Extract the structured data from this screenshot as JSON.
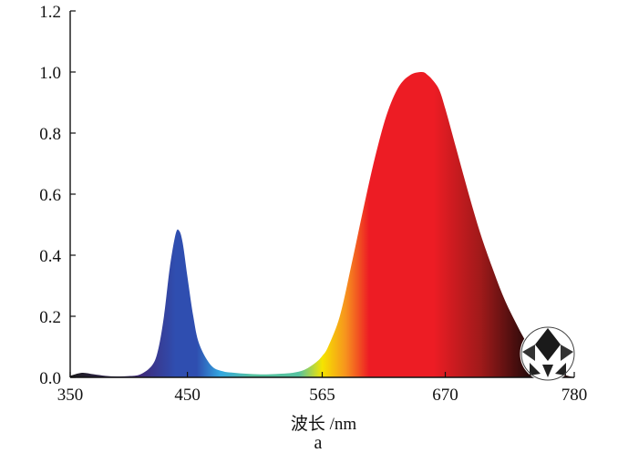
{
  "chart_data": {
    "type": "area",
    "title": "",
    "xlabel": "波长 /nm",
    "ylabel": "",
    "panel_label": "a",
    "xlim": [
      350,
      780
    ],
    "ylim": [
      0,
      1.2
    ],
    "x_ticks": [
      350,
      450,
      565,
      670,
      780
    ],
    "x_tick_labels": [
      "350",
      "450",
      "565",
      "670",
      "780"
    ],
    "y_ticks": [
      0.0,
      0.2,
      0.4,
      0.6,
      0.8,
      1.0,
      1.2
    ],
    "y_tick_labels": [
      "0.0",
      "0.2",
      "0.4",
      "0.6",
      "0.8",
      "1.0",
      "1.2"
    ],
    "grid": false,
    "legend": "none",
    "series": [
      {
        "x": [
          350,
          360,
          370,
          380,
          390,
          400,
          410,
          420,
          425,
          430,
          435,
          440,
          443,
          446,
          450,
          455,
          460,
          470,
          480,
          490,
          500,
          510,
          520,
          530,
          540,
          550,
          560,
          565,
          570,
          580,
          590,
          600,
          610,
          620,
          630,
          640,
          650,
          655,
          660,
          665,
          670,
          680,
          690,
          700,
          710,
          720,
          730,
          740,
          750,
          760,
          770,
          780
        ],
        "y": [
          0.005,
          0.015,
          0.01,
          0.005,
          0.003,
          0.004,
          0.01,
          0.04,
          0.09,
          0.2,
          0.36,
          0.47,
          0.48,
          0.44,
          0.33,
          0.2,
          0.11,
          0.04,
          0.02,
          0.015,
          0.012,
          0.01,
          0.01,
          0.012,
          0.015,
          0.025,
          0.05,
          0.07,
          0.1,
          0.2,
          0.37,
          0.55,
          0.72,
          0.86,
          0.95,
          0.99,
          1.0,
          0.99,
          0.97,
          0.94,
          0.88,
          0.74,
          0.6,
          0.47,
          0.36,
          0.26,
          0.18,
          0.11,
          0.06,
          0.03,
          0.01,
          0.0
        ]
      }
    ],
    "colors": {
      "violet": "#3f2a7a",
      "blue": "#2f4eb0",
      "light_blue": "#33a6e0",
      "green": "#56c2a0",
      "yellow": "#f5e400",
      "orange": "#f7931e",
      "red": "#ed1c24",
      "dark_red": "#a01a1a",
      "near_black": "#2a0a0a",
      "uv_dark": "#1a1a1a"
    }
  }
}
